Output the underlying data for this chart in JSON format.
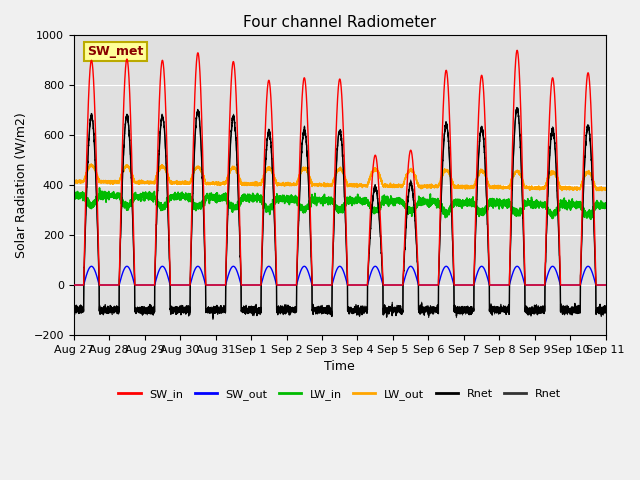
{
  "title": "Four channel Radiometer",
  "xlabel": "Time",
  "ylabel": "Solar Radiation (W/m2)",
  "ylim": [
    -200,
    1000
  ],
  "annotation": "SW_met",
  "colors": {
    "SW_in": "#ff0000",
    "SW_out": "#0000ff",
    "LW_in": "#00bb00",
    "LW_out": "#ffa500",
    "Rnet_black": "#000000",
    "Rnet_dark": "#333333"
  },
  "background_color": "#e0e0e0",
  "fig_bg": "#f0f0f0",
  "n_days": 15,
  "sw_in_peaks": [
    900,
    905,
    900,
    930,
    895,
    820,
    830,
    825,
    520,
    540,
    860,
    840,
    940,
    830,
    850
  ],
  "tick_labels": [
    "Aug 27",
    "Aug 28",
    "Aug 29",
    "Aug 30",
    "Aug 31",
    "Sep 1",
    "Sep 2",
    "Sep 3",
    "Sep 4",
    "Sep 5",
    "Sep 6",
    "Sep 7",
    "Sep 8",
    "Sep 9",
    "Sep 10",
    "Sep 11"
  ]
}
